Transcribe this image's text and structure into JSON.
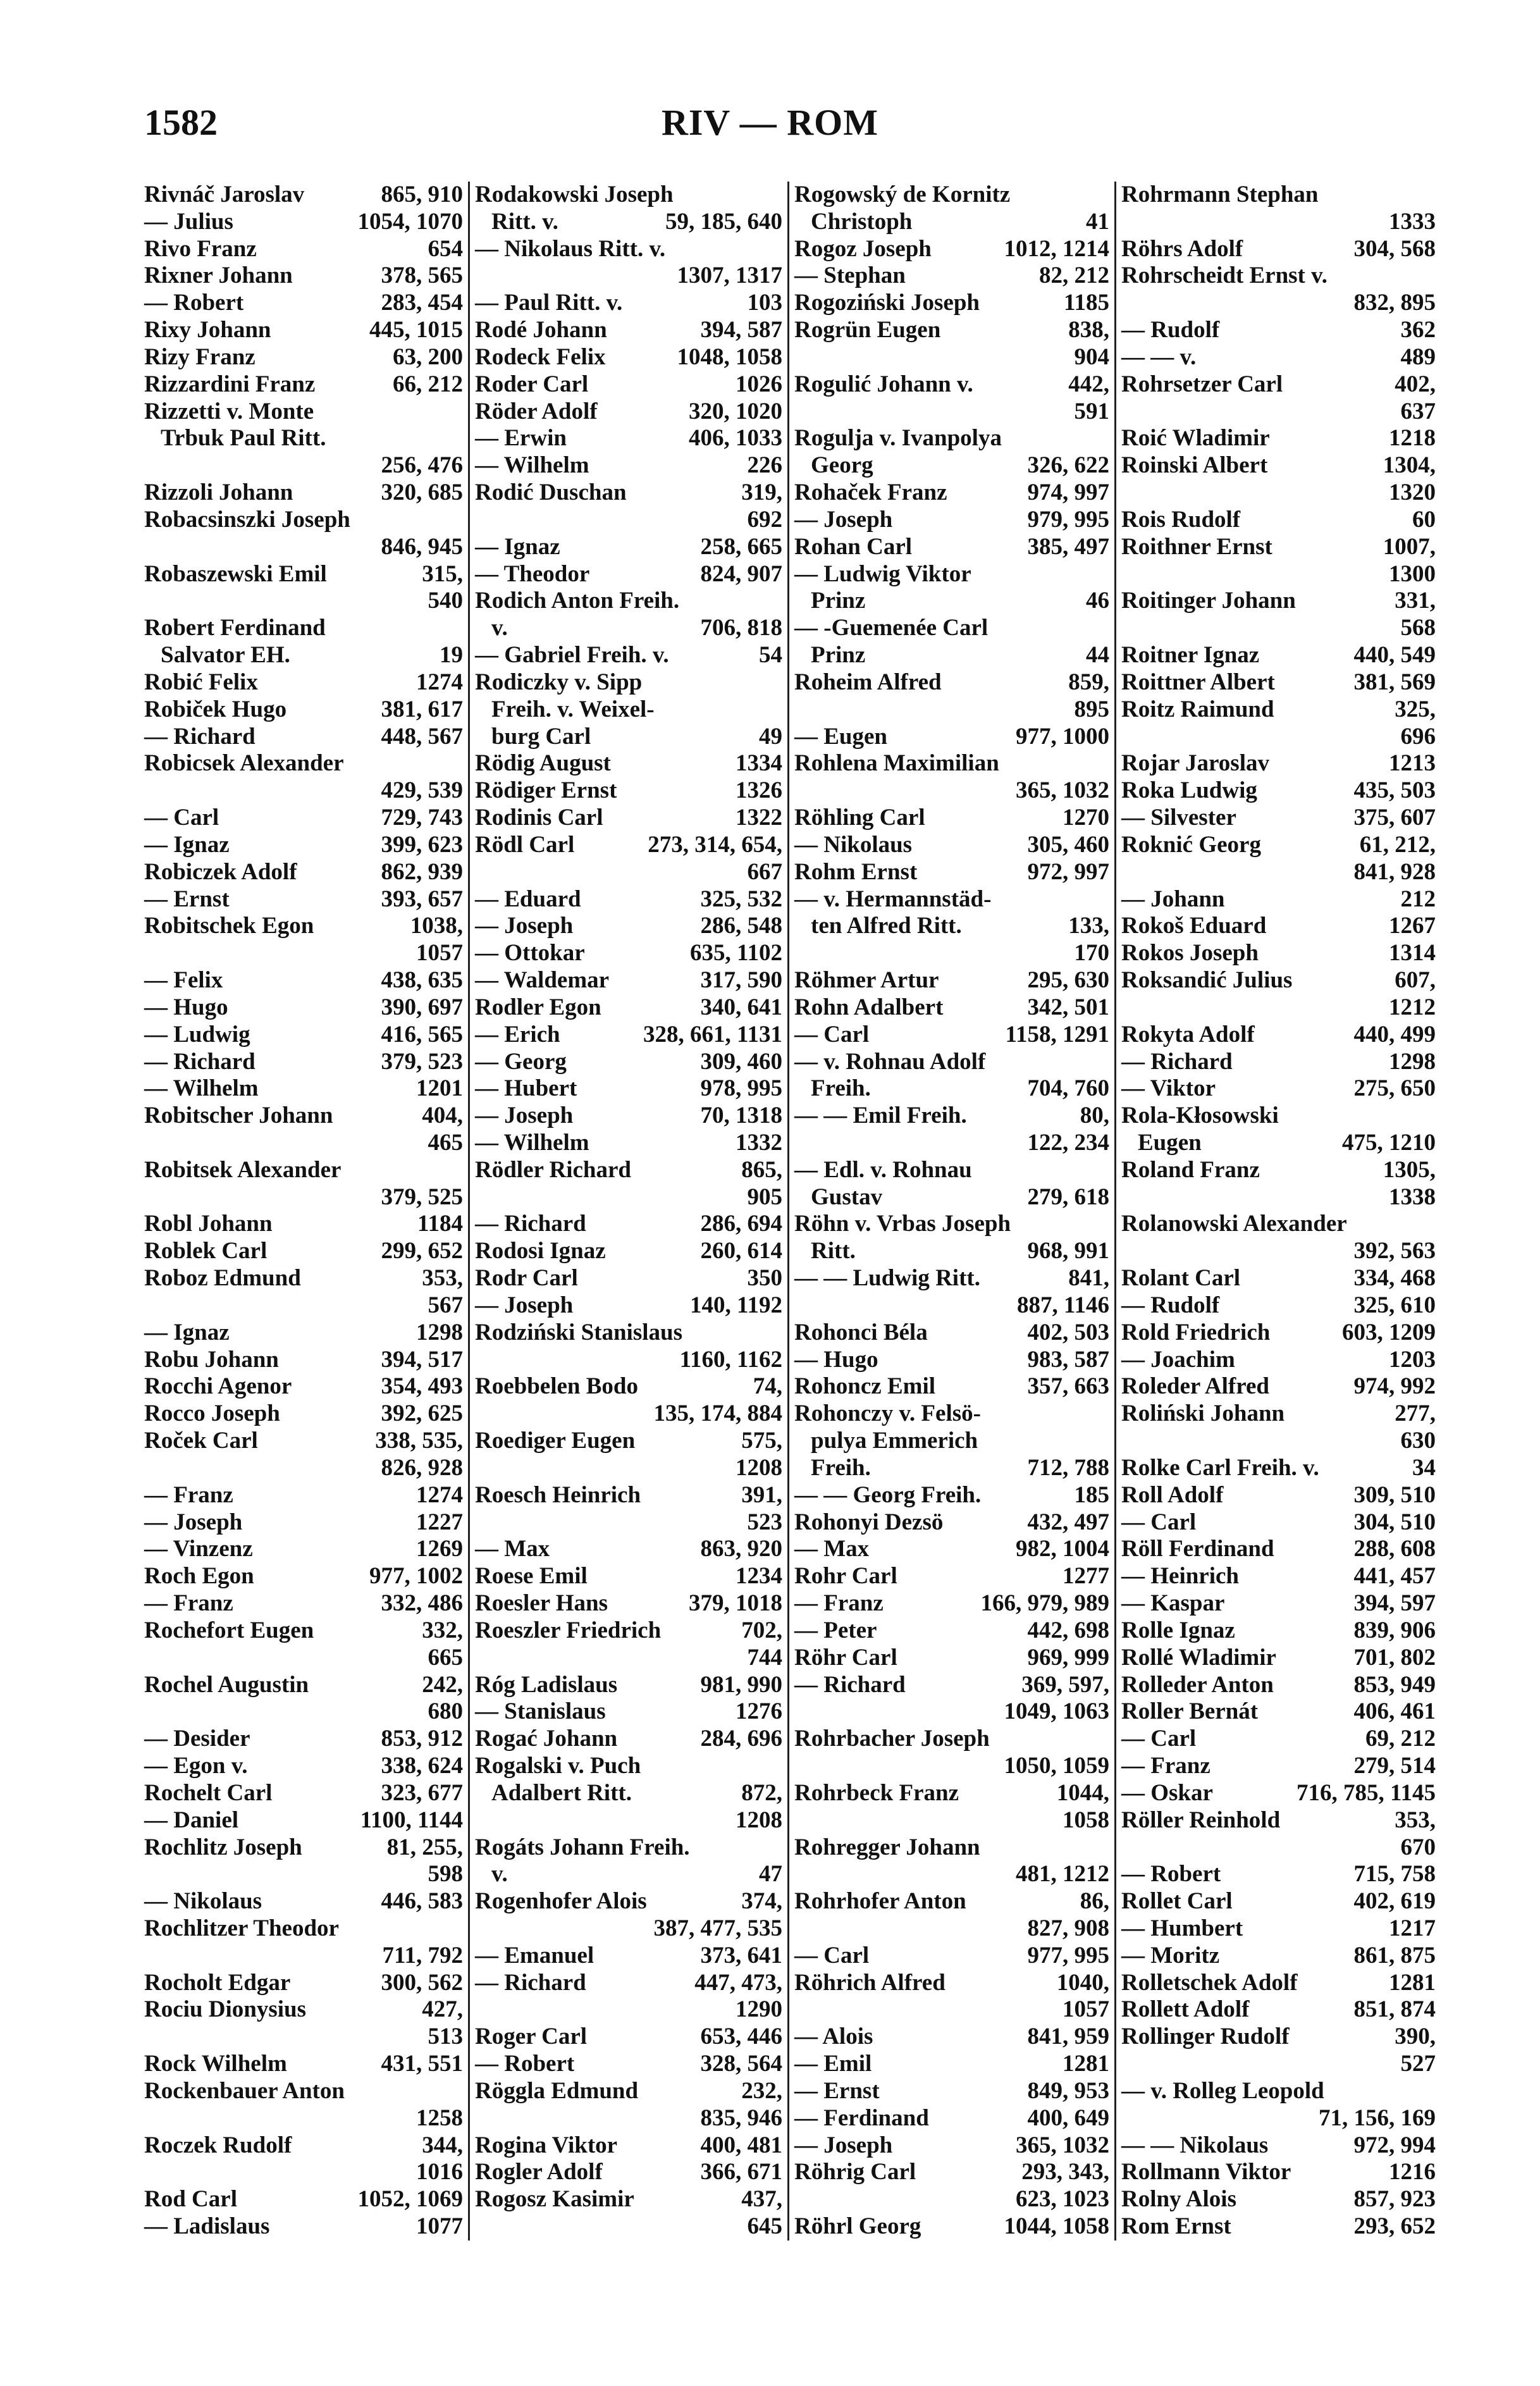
{
  "header": {
    "page_number": "1582",
    "running_head": "RIV — ROM"
  },
  "columns": [
    {
      "lines": [
        [
          "Rivnáč Jaroslav",
          "865, 910"
        ],
        [
          "— Julius",
          "1054, 1070"
        ],
        [
          "Rivo Franz",
          "654"
        ],
        [
          "Rixner Johann",
          "378, 565"
        ],
        [
          "— Robert",
          "283, 454"
        ],
        [
          "Rixy Johann",
          "445, 1015"
        ],
        [
          "Rizy Franz",
          "63, 200"
        ],
        [
          "Rizzardini Franz",
          "66, 212"
        ],
        [
          "Rizzetti v. Monte",
          ""
        ],
        [
          " Trbuk Paul Ritt.",
          ""
        ],
        [
          "",
          "256, 476"
        ],
        [
          "Rizzoli Johann",
          "320, 685"
        ],
        [
          "Robacsinszki Joseph",
          ""
        ],
        [
          "",
          "846, 945"
        ],
        [
          "Robaszewski Emil",
          "315,"
        ],
        [
          "",
          "540"
        ],
        [
          "Robert Ferdinand",
          ""
        ],
        [
          " Salvator EH.",
          "19"
        ],
        [
          "Robić Felix",
          "1274"
        ],
        [
          "Robiček Hugo",
          "381, 617"
        ],
        [
          "— Richard",
          "448, 567"
        ],
        [
          "Robicsek Alexander",
          ""
        ],
        [
          "",
          "429, 539"
        ],
        [
          "— Carl",
          "729, 743"
        ],
        [
          "— Ignaz",
          "399, 623"
        ],
        [
          "Robiczek Adolf",
          "862, 939"
        ],
        [
          "— Ernst",
          "393, 657"
        ],
        [
          "Robitschek Egon",
          "1038,"
        ],
        [
          "",
          "1057"
        ],
        [
          "— Felix",
          "438, 635"
        ],
        [
          "— Hugo",
          "390, 697"
        ],
        [
          "— Ludwig",
          "416, 565"
        ],
        [
          "— Richard",
          "379, 523"
        ],
        [
          "— Wilhelm",
          "1201"
        ],
        [
          "Robitscher Johann",
          "404,"
        ],
        [
          "",
          "465"
        ],
        [
          "Robitsek Alexander",
          ""
        ],
        [
          "",
          "379, 525"
        ],
        [
          "Robl Johann",
          "1184"
        ],
        [
          "Roblek Carl",
          "299, 652"
        ],
        [
          "Roboz Edmund",
          "353,"
        ],
        [
          "",
          "567"
        ],
        [
          "— Ignaz",
          "1298"
        ],
        [
          "Robu Johann",
          "394, 517"
        ],
        [
          "Rocchi Agenor",
          "354, 493"
        ],
        [
          "Rocco Joseph",
          "392, 625"
        ],
        [
          "Roček Carl",
          "338, 535,"
        ],
        [
          "",
          "826, 928"
        ],
        [
          "— Franz",
          "1274"
        ],
        [
          "— Joseph",
          "1227"
        ],
        [
          "— Vinzenz",
          "1269"
        ],
        [
          "Roch Egon",
          "977, 1002"
        ],
        [
          "— Franz",
          "332, 486"
        ],
        [
          "Rochefort Eugen",
          "332,"
        ],
        [
          "",
          "665"
        ],
        [
          "Rochel Augustin",
          "242,"
        ],
        [
          "",
          "680"
        ],
        [
          "— Desider",
          "853, 912"
        ],
        [
          "— Egon v.",
          "338, 624"
        ],
        [
          "Rochelt Carl",
          "323, 677"
        ],
        [
          "— Daniel",
          "1100, 1144"
        ],
        [
          "Rochlitz Joseph",
          "81, 255,"
        ],
        [
          "",
          "598"
        ],
        [
          "— Nikolaus",
          "446, 583"
        ],
        [
          "Rochlitzer Theodor",
          ""
        ],
        [
          "",
          "711, 792"
        ],
        [
          "Rocholt Edgar",
          "300, 562"
        ],
        [
          "Rociu Dionysius",
          "427,"
        ],
        [
          "",
          "513"
        ],
        [
          "Rock Wilhelm",
          "431, 551"
        ],
        [
          "Rockenbauer Anton",
          ""
        ],
        [
          "",
          "1258"
        ],
        [
          "Roczek Rudolf",
          "344,"
        ],
        [
          "",
          "1016"
        ],
        [
          "Rod Carl",
          "1052, 1069"
        ],
        [
          "— Ladislaus",
          "1077"
        ]
      ]
    },
    {
      "lines": [
        [
          "Rodakowski Joseph",
          ""
        ],
        [
          " Ritt. v.",
          "59, 185, 640"
        ],
        [
          "— Nikolaus Ritt. v.",
          ""
        ],
        [
          "",
          "1307, 1317"
        ],
        [
          "— Paul Ritt. v.",
          "103"
        ],
        [
          "Rodé Johann",
          "394, 587"
        ],
        [
          "Rodeck Felix",
          "1048, 1058"
        ],
        [
          "Roder Carl",
          "1026"
        ],
        [
          "Röder Adolf",
          "320, 1020"
        ],
        [
          "— Erwin",
          "406, 1033"
        ],
        [
          "— Wilhelm",
          "226"
        ],
        [
          "Rodić Duschan",
          "319,"
        ],
        [
          "",
          "692"
        ],
        [
          "— Ignaz",
          "258, 665"
        ],
        [
          "— Theodor",
          "824, 907"
        ],
        [
          "Rodich Anton Freih.",
          ""
        ],
        [
          " v.",
          "706, 818"
        ],
        [
          "— Gabriel Freih. v.",
          "54"
        ],
        [
          "Rodiczky v. Sipp",
          ""
        ],
        [
          " Freih. v. Weixel-",
          ""
        ],
        [
          " burg Carl",
          "49"
        ],
        [
          "Rödig August",
          "1334"
        ],
        [
          "Rödiger Ernst",
          "1326"
        ],
        [
          "Rodinis Carl",
          "1322"
        ],
        [
          "Rödl Carl",
          "273, 314, 654,"
        ],
        [
          "",
          "667"
        ],
        [
          "— Eduard",
          "325, 532"
        ],
        [
          "— Joseph",
          "286, 548"
        ],
        [
          "— Ottokar",
          "635, 1102"
        ],
        [
          "— Waldemar",
          "317, 590"
        ],
        [
          "Rodler Egon",
          "340, 641"
        ],
        [
          "— Erich",
          "328, 661, 1131"
        ],
        [
          "— Georg",
          "309, 460"
        ],
        [
          "— Hubert",
          "978, 995"
        ],
        [
          "— Joseph",
          "70, 1318"
        ],
        [
          "— Wilhelm",
          "1332"
        ],
        [
          "Rödler Richard",
          "865,"
        ],
        [
          "",
          "905"
        ],
        [
          "— Richard",
          "286, 694"
        ],
        [
          "Rodosi Ignaz",
          "260, 614"
        ],
        [
          "Rodr Carl",
          "350"
        ],
        [
          "— Joseph",
          "140, 1192"
        ],
        [
          "Rodziński Stanislaus",
          ""
        ],
        [
          "",
          "1160, 1162"
        ],
        [
          "Roebbelen Bodo",
          "74,"
        ],
        [
          "",
          "135, 174, 884"
        ],
        [
          "Roediger Eugen",
          "575,"
        ],
        [
          "",
          "1208"
        ],
        [
          "Roesch Heinrich",
          "391,"
        ],
        [
          "",
          "523"
        ],
        [
          "— Max",
          "863, 920"
        ],
        [
          "Roese Emil",
          "1234"
        ],
        [
          "Roesler Hans",
          "379, 1018"
        ],
        [
          "Roeszler Friedrich",
          "702,"
        ],
        [
          "",
          "744"
        ],
        [
          "Róg Ladislaus",
          "981, 990"
        ],
        [
          "— Stanislaus",
          "1276"
        ],
        [
          "Rogać Johann",
          "284, 696"
        ],
        [
          "Rogalski v. Puch",
          ""
        ],
        [
          " Adalbert Ritt.",
          "872,"
        ],
        [
          "",
          "1208"
        ],
        [
          "Rogáts Johann Freih.",
          ""
        ],
        [
          " v.",
          "47"
        ],
        [
          "Rogenhofer Alois",
          "374,"
        ],
        [
          "",
          "387, 477, 535"
        ],
        [
          "— Emanuel",
          "373, 641"
        ],
        [
          "— Richard",
          "447, 473,"
        ],
        [
          "",
          "1290"
        ],
        [
          "Roger Carl",
          "653, 446"
        ],
        [
          "— Robert",
          "328, 564"
        ],
        [
          "Röggla Edmund",
          "232,"
        ],
        [
          "",
          "835, 946"
        ],
        [
          "Rogina Viktor",
          "400, 481"
        ],
        [
          "Rogler Adolf",
          "366, 671"
        ],
        [
          "Rogosz Kasimir",
          "437,"
        ],
        [
          "",
          "645"
        ]
      ]
    },
    {
      "lines": [
        [
          "Rogowský de Kornitz",
          ""
        ],
        [
          " Christoph",
          "41"
        ],
        [
          "Rogoz Joseph",
          "1012, 1214"
        ],
        [
          "— Stephan",
          "82, 212"
        ],
        [
          "Rogoziński Joseph",
          "1185"
        ],
        [
          "Rogrün Eugen",
          "838,"
        ],
        [
          "",
          "904"
        ],
        [
          "Rogulić Johann v.",
          "442,"
        ],
        [
          "",
          "591"
        ],
        [
          "Rogulja v. Ivanpolya",
          ""
        ],
        [
          " Georg",
          "326, 622"
        ],
        [
          "Rohaček Franz",
          "974, 997"
        ],
        [
          "— Joseph",
          "979, 995"
        ],
        [
          "Rohan Carl",
          "385, 497"
        ],
        [
          "— Ludwig Viktor",
          ""
        ],
        [
          " Prinz",
          "46"
        ],
        [
          "— -Guemenée Carl",
          ""
        ],
        [
          " Prinz",
          "44"
        ],
        [
          "Roheim Alfred",
          "859,"
        ],
        [
          "",
          "895"
        ],
        [
          "— Eugen",
          "977, 1000"
        ],
        [
          "Rohlena Maximilian",
          ""
        ],
        [
          "",
          "365, 1032"
        ],
        [
          "Röhling Carl",
          "1270"
        ],
        [
          "— Nikolaus",
          "305, 460"
        ],
        [
          "Rohm Ernst",
          "972, 997"
        ],
        [
          "— v. Hermannstäd-",
          ""
        ],
        [
          " ten Alfred Ritt.",
          "133,"
        ],
        [
          "",
          "170"
        ],
        [
          "Röhmer Artur",
          "295, 630"
        ],
        [
          "Rohn Adalbert",
          "342, 501"
        ],
        [
          "— Carl",
          "1158, 1291"
        ],
        [
          "— v. Rohnau Adolf",
          ""
        ],
        [
          " Freih.",
          "704, 760"
        ],
        [
          "— — Emil Freih.",
          "80,"
        ],
        [
          "",
          "122, 234"
        ],
        [
          "— Edl. v. Rohnau",
          ""
        ],
        [
          " Gustav",
          "279, 618"
        ],
        [
          "Röhn v. Vrbas Joseph",
          ""
        ],
        [
          " Ritt.",
          "968, 991"
        ],
        [
          "— — Ludwig Ritt.",
          "841,"
        ],
        [
          "",
          "887, 1146"
        ],
        [
          "Rohonci Béla",
          "402, 503"
        ],
        [
          "— Hugo",
          "983, 587"
        ],
        [
          "Rohoncz Emil",
          "357, 663"
        ],
        [
          "Rohonczy v. Felsö-",
          ""
        ],
        [
          " pulya Emmerich",
          ""
        ],
        [
          " Freih.",
          "712, 788"
        ],
        [
          "— — Georg Freih.",
          "185"
        ],
        [
          "Rohonyi Dezsö",
          "432, 497"
        ],
        [
          "— Max",
          "982, 1004"
        ],
        [
          "Rohr Carl",
          "1277"
        ],
        [
          "— Franz",
          "166, 979, 989"
        ],
        [
          "— Peter",
          "442, 698"
        ],
        [
          "Röhr Carl",
          "969, 999"
        ],
        [
          "— Richard",
          "369, 597,"
        ],
        [
          "",
          "1049, 1063"
        ],
        [
          "Rohrbacher Joseph",
          ""
        ],
        [
          "",
          "1050, 1059"
        ],
        [
          "Rohrbeck Franz",
          "1044,"
        ],
        [
          "",
          "1058"
        ],
        [
          "Rohregger Johann",
          ""
        ],
        [
          "",
          "481, 1212"
        ],
        [
          "Rohrhofer Anton",
          "86,"
        ],
        [
          "",
          "827, 908"
        ],
        [
          "— Carl",
          "977, 995"
        ],
        [
          "Röhrich Alfred",
          "1040,"
        ],
        [
          "",
          "1057"
        ],
        [
          "— Alois",
          "841, 959"
        ],
        [
          "— Emil",
          "1281"
        ],
        [
          "— Ernst",
          "849, 953"
        ],
        [
          "— Ferdinand",
          "400, 649"
        ],
        [
          "— Joseph",
          "365, 1032"
        ],
        [
          "Röhrig Carl",
          "293, 343,"
        ],
        [
          "",
          "623, 1023"
        ],
        [
          "Röhrl Georg",
          "1044, 1058"
        ]
      ]
    },
    {
      "lines": [
        [
          "Rohrmann Stephan",
          ""
        ],
        [
          "",
          "1333"
        ],
        [
          "Röhrs Adolf",
          "304, 568"
        ],
        [
          "Rohrscheidt Ernst v.",
          ""
        ],
        [
          "",
          "832, 895"
        ],
        [
          "— Rudolf",
          "362"
        ],
        [
          "— — v.",
          "489"
        ],
        [
          "Rohrsetzer Carl",
          "402,"
        ],
        [
          "",
          "637"
        ],
        [
          "Roić Wladimir",
          "1218"
        ],
        [
          "Roinski Albert",
          "1304,"
        ],
        [
          "",
          "1320"
        ],
        [
          "Rois Rudolf",
          "60"
        ],
        [
          "Roithner Ernst",
          "1007,"
        ],
        [
          "",
          "1300"
        ],
        [
          "Roitinger Johann",
          "331,"
        ],
        [
          "",
          "568"
        ],
        [
          "Roitner Ignaz",
          "440, 549"
        ],
        [
          "Roittner Albert",
          "381, 569"
        ],
        [
          "Roitz Raimund",
          "325,"
        ],
        [
          "",
          "696"
        ],
        [
          "Rojar Jaroslav",
          "1213"
        ],
        [
          "Roka Ludwig",
          "435, 503"
        ],
        [
          "— Silvester",
          "375, 607"
        ],
        [
          "Roknić Georg",
          "61, 212,"
        ],
        [
          "",
          "841, 928"
        ],
        [
          "— Johann",
          "212"
        ],
        [
          "Rokoš Eduard",
          "1267"
        ],
        [
          "Rokos Joseph",
          "1314"
        ],
        [
          "Roksandić Julius",
          "607,"
        ],
        [
          "",
          "1212"
        ],
        [
          "Rokyta Adolf",
          "440, 499"
        ],
        [
          "— Richard",
          "1298"
        ],
        [
          "— Viktor",
          "275, 650"
        ],
        [
          "Rola-Kłosowski",
          ""
        ],
        [
          " Eugen",
          "475, 1210"
        ],
        [
          "Roland Franz",
          "1305,"
        ],
        [
          "",
          "1338"
        ],
        [
          "Rolanowski Alexander",
          ""
        ],
        [
          "",
          "392, 563"
        ],
        [
          "Rolant Carl",
          "334, 468"
        ],
        [
          "— Rudolf",
          "325, 610"
        ],
        [
          "Rold Friedrich",
          "603, 1209"
        ],
        [
          "— Joachim",
          "1203"
        ],
        [
          "Roleder Alfred",
          "974, 992"
        ],
        [
          "Roliński Johann",
          "277,"
        ],
        [
          "",
          "630"
        ],
        [
          "Rolke Carl Freih. v.",
          "34"
        ],
        [
          "Roll Adolf",
          "309, 510"
        ],
        [
          "— Carl",
          "304, 510"
        ],
        [
          "Röll Ferdinand",
          "288, 608"
        ],
        [
          "— Heinrich",
          "441, 457"
        ],
        [
          "— Kaspar",
          "394, 597"
        ],
        [
          "Rolle Ignaz",
          "839, 906"
        ],
        [
          "Rollé Wladimir",
          "701, 802"
        ],
        [
          "Rolleder Anton",
          "853, 949"
        ],
        [
          "Roller Bernát",
          "406, 461"
        ],
        [
          "— Carl",
          "69, 212"
        ],
        [
          "— Franz",
          "279, 514"
        ],
        [
          "— Oskar",
          "716, 785, 1145"
        ],
        [
          "Röller Reinhold",
          "353,"
        ],
        [
          "",
          "670"
        ],
        [
          "— Robert",
          "715, 758"
        ],
        [
          "Rollet Carl",
          "402, 619"
        ],
        [
          "— Humbert",
          "1217"
        ],
        [
          "— Moritz",
          "861, 875"
        ],
        [
          "Rolletschek Adolf",
          "1281"
        ],
        [
          "Rollett Adolf",
          "851, 874"
        ],
        [
          "Rollinger Rudolf",
          "390,"
        ],
        [
          "",
          "527"
        ],
        [
          "— v. Rolleg Leopold",
          ""
        ],
        [
          "",
          "71, 156, 169"
        ],
        [
          "— — Nikolaus",
          "972, 994"
        ],
        [
          "Rollmann Viktor",
          "1216"
        ],
        [
          "Rolny Alois",
          "857, 923"
        ],
        [
          "Rom Ernst",
          "293, 652"
        ]
      ]
    }
  ]
}
